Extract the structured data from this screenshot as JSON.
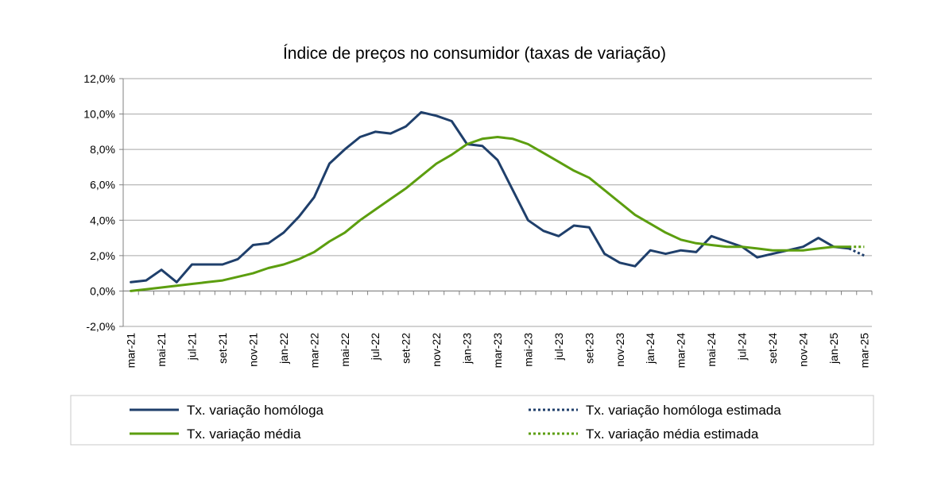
{
  "chart_data": {
    "type": "line",
    "title": "Índice de preços no consumidor  (taxas  de variação)",
    "xlabel": "",
    "ylabel": "",
    "ylim": [
      -2.0,
      12.0
    ],
    "y_ticks": [
      "-2,0%",
      "0,0%",
      "2,0%",
      "4,0%",
      "6,0%",
      "8,0%",
      "10,0%",
      "12,0%"
    ],
    "grid": true,
    "legend_position": "bottom",
    "x_tick_labels": [
      "mar-21",
      "mai-21",
      "jul-21",
      "set-21",
      "nov-21",
      "jan-22",
      "mar-22",
      "mai-22",
      "jul-22",
      "set-22",
      "nov-22",
      "jan-23",
      "mar-23",
      "mai-23",
      "jul-23",
      "set-23",
      "nov-23",
      "jan-24",
      "mar-24",
      "mai-24",
      "jul-24",
      "set-24",
      "nov-24",
      "jan-25",
      "mar-25"
    ],
    "series": [
      {
        "name": "Tx. variação homóloga",
        "color": "#1F3F6B",
        "style": "solid",
        "values": [
          0.5,
          0.6,
          1.2,
          0.5,
          1.5,
          1.5,
          1.5,
          1.8,
          2.6,
          2.7,
          3.3,
          4.2,
          5.3,
          7.2,
          8.0,
          8.7,
          9.0,
          8.9,
          9.3,
          10.1,
          9.9,
          9.6,
          8.3,
          8.2,
          7.4,
          5.7,
          4.0,
          3.4,
          3.1,
          3.7,
          3.6,
          2.1,
          1.6,
          1.4,
          2.3,
          2.1,
          2.3,
          2.2,
          3.1,
          2.8,
          2.5,
          1.9,
          2.1,
          2.3,
          2.5,
          3.0,
          2.5,
          2.4
        ]
      },
      {
        "name": "Tx. variação média",
        "color": "#5C9E0F",
        "style": "solid",
        "values": [
          0.0,
          0.1,
          0.2,
          0.3,
          0.4,
          0.5,
          0.6,
          0.8,
          1.0,
          1.3,
          1.5,
          1.8,
          2.2,
          2.8,
          3.3,
          4.0,
          4.6,
          5.2,
          5.8,
          6.5,
          7.2,
          7.7,
          8.3,
          8.6,
          8.7,
          8.6,
          8.3,
          7.8,
          7.3,
          6.8,
          6.4,
          5.7,
          5.0,
          4.3,
          3.8,
          3.3,
          2.9,
          2.7,
          2.6,
          2.5,
          2.5,
          2.4,
          2.3,
          2.3,
          2.3,
          2.4,
          2.5,
          2.5
        ]
      },
      {
        "name": "Tx. variação homóloga estimada",
        "color": "#1F3F6B",
        "style": "dotted",
        "x_start_index": 47,
        "values": [
          2.4,
          2.0
        ]
      },
      {
        "name": "Tx. variação média  estimada",
        "color": "#5C9E0F",
        "style": "dotted",
        "x_start_index": 47,
        "values": [
          2.5,
          2.5
        ]
      }
    ]
  }
}
